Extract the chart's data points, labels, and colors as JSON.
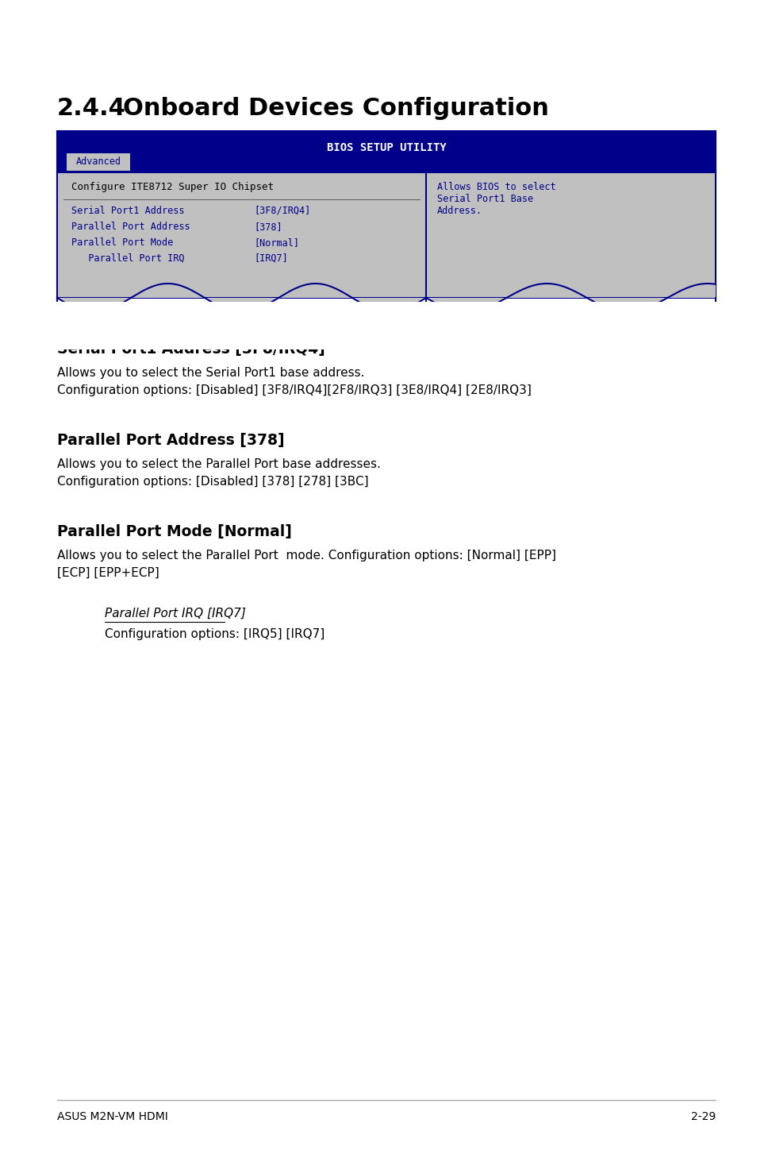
{
  "title_number": "2.4.4",
  "title_text": "Onboard Devices Configuration",
  "bios_header": "BIOS SETUP UTILITY",
  "bios_tab": "Advanced",
  "bios_configure": "Configure ITE8712 Super IO Chipset",
  "bios_items": [
    [
      "Serial Port1 Address",
      "[3F8/IRQ4]"
    ],
    [
      "Parallel Port Address",
      "[378]"
    ],
    [
      "Parallel Port Mode",
      "[Normal]"
    ],
    [
      "   Parallel Port IRQ",
      "[IRQ7]"
    ]
  ],
  "bios_help": "Allows BIOS to select\nSerial Port1 Base\nAddress.",
  "bios_bg": "#c0c0c0",
  "bios_header_bg": "#00008b",
  "bios_header_fg": "#ffffff",
  "bios_tab_bg": "#c0c0c0",
  "bios_tab_fg": "#00008b",
  "bios_item_fg": "#00008b",
  "bios_configure_fg": "#000000",
  "bios_help_fg": "#00008b",
  "bios_border": "#00008b",
  "section1_title": "Serial Port1 Address [3F8/IRQ4]",
  "section1_body1": "Allows you to select the Serial Port1 base address.",
  "section1_body2": "Configuration options: [Disabled] [3F8/IRQ4][2F8/IRQ3] [3E8/IRQ4] [2E8/IRQ3]",
  "section2_title": "Parallel Port Address [378]",
  "section2_body1": "Allows you to select the Parallel Port base addresses.",
  "section2_body2": "Configuration options: [Disabled] [378] [278] [3BC]",
  "section3_title": "Parallel Port Mode [Normal]",
  "section3_body1": "Allows you to select the Parallel Port  mode. Configuration options: [Normal] [EPP]",
  "section3_body2": "[ECP] [EPP+ECP]",
  "section4_title": "Parallel Port IRQ [IRQ7]",
  "section4_body1": "Configuration options: [IRQ5] [IRQ7]",
  "footer_left": "ASUS M2N-VM HDMI",
  "footer_right": "2-29",
  "bg_color": "#ffffff",
  "text_color": "#000000",
  "footer_line_color": "#aaaaaa"
}
